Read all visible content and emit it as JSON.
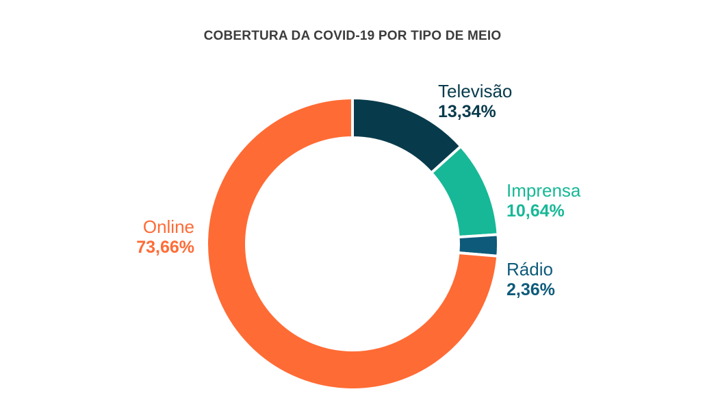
{
  "chart_data": {
    "type": "pie",
    "title": "COBERTURA DA COVID-19 POR TIPO DE MEIO",
    "series": [
      {
        "name": "Televisão",
        "value": 13.34,
        "label": "13,34%",
        "color": "#073b4c"
      },
      {
        "name": "Imprensa",
        "value": 10.64,
        "label": "10,64%",
        "color": "#17b897"
      },
      {
        "name": "Rádio",
        "value": 2.36,
        "label": "2,36%",
        "color": "#0d5a7a"
      },
      {
        "name": "Online",
        "value": 73.66,
        "label": "73,66%",
        "color": "#ff6b35"
      }
    ],
    "legend": "none"
  }
}
